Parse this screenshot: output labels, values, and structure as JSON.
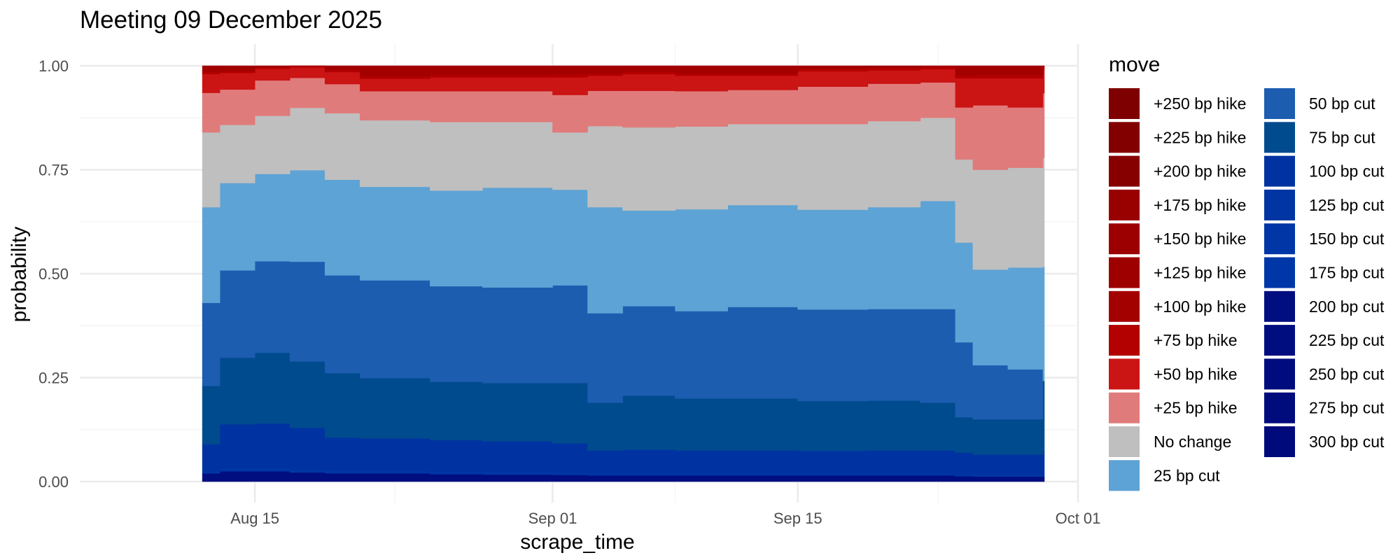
{
  "chart_data": {
    "type": "area",
    "stacked": true,
    "title": "Meeting 09 December 2025",
    "xlabel": "scrape_time",
    "ylabel": "probability",
    "xlim": [
      "2025-08-05",
      "2025-10-01"
    ],
    "ylim": [
      0,
      1
    ],
    "x_ticks": [
      {
        "date": "2025-08-15",
        "label": "Aug 15"
      },
      {
        "date": "2025-09-01",
        "label": "Sep 01"
      },
      {
        "date": "2025-09-15",
        "label": "Sep 15"
      },
      {
        "date": "2025-10-01",
        "label": "Oct 01"
      }
    ],
    "y_ticks": [
      {
        "value": 0.0,
        "label": "0.00"
      },
      {
        "value": 0.25,
        "label": "0.25"
      },
      {
        "value": 0.5,
        "label": "0.50"
      },
      {
        "value": 0.75,
        "label": "0.75"
      },
      {
        "value": 1.0,
        "label": "1.00"
      }
    ],
    "grid": true,
    "legend_title": "move",
    "legend_position": "right",
    "legend": [
      {
        "label": "+250 bp hike",
        "color": "#7f0000"
      },
      {
        "label": "+225 bp hike",
        "color": "#820000"
      },
      {
        "label": "+200 bp hike",
        "color": "#860000"
      },
      {
        "label": "+175 bp hike",
        "color": "#990000"
      },
      {
        "label": "+150 bp hike",
        "color": "#9c0000"
      },
      {
        "label": "+125 bp hike",
        "color": "#9e0000"
      },
      {
        "label": "+100 bp hike",
        "color": "#a30000"
      },
      {
        "label": "+75 bp hike",
        "color": "#b30000"
      },
      {
        "label": "+50 bp hike",
        "color": "#cb1414"
      },
      {
        "label": "+25 bp hike",
        "color": "#e07b7b"
      },
      {
        "label": "No change",
        "color": "#bfbfbf"
      },
      {
        "label": "25 bp cut",
        "color": "#5da3d5"
      },
      {
        "label": "50 bp cut",
        "color": "#1c5db0"
      },
      {
        "label": "75 bp cut",
        "color": "#004b8d"
      },
      {
        "label": "100 bp cut",
        "color": "#0033a1"
      },
      {
        "label": "125 bp cut",
        "color": "#0035a3"
      },
      {
        "label": "150 bp cut",
        "color": "#0036a6"
      },
      {
        "label": "175 bp cut",
        "color": "#0037a8"
      },
      {
        "label": "200 bp cut",
        "color": "#000e7f"
      },
      {
        "label": "225 bp cut",
        "color": "#000d7f"
      },
      {
        "label": "250 bp cut",
        "color": "#000c7d"
      },
      {
        "label": "275 bp cut",
        "color": "#000b7c"
      },
      {
        "label": "300 bp cut",
        "color": "#000a7a"
      }
    ],
    "dates": [
      "2025-08-12",
      "2025-08-13",
      "2025-08-15",
      "2025-08-17",
      "2025-08-19",
      "2025-08-21",
      "2025-08-25",
      "2025-08-28",
      "2025-09-01",
      "2025-09-03",
      "2025-09-05",
      "2025-09-08",
      "2025-09-11",
      "2025-09-15",
      "2025-09-19",
      "2025-09-22",
      "2025-09-24",
      "2025-09-25",
      "2025-09-27",
      "2025-09-29"
    ],
    "series": [
      {
        "name": "200 bp cut",
        "values": [
          0.02,
          0.025,
          0.025,
          0.022,
          0.02,
          0.02,
          0.018,
          0.017,
          0.016,
          0.015,
          0.015,
          0.015,
          0.015,
          0.015,
          0.015,
          0.015,
          0.013,
          0.012,
          0.012,
          0.012
        ]
      },
      {
        "name": "150 bp cut",
        "values": [
          0.005,
          0.008,
          0.008,
          0.007,
          0.006,
          0.006,
          0.005,
          0.005,
          0.005,
          0.004,
          0.004,
          0.004,
          0.004,
          0.004,
          0.004,
          0.004,
          0.003,
          0.003,
          0.003,
          0.003
        ]
      },
      {
        "name": "100 bp cut",
        "values": [
          0.065,
          0.105,
          0.107,
          0.1,
          0.08,
          0.078,
          0.077,
          0.075,
          0.071,
          0.056,
          0.058,
          0.056,
          0.056,
          0.055,
          0.056,
          0.056,
          0.054,
          0.05,
          0.05,
          0.057
        ]
      },
      {
        "name": "75 bp cut",
        "values": [
          0.14,
          0.16,
          0.17,
          0.16,
          0.155,
          0.145,
          0.14,
          0.14,
          0.145,
          0.115,
          0.13,
          0.125,
          0.125,
          0.12,
          0.12,
          0.115,
          0.085,
          0.085,
          0.085,
          0.17
        ]
      },
      {
        "name": "50 bp cut",
        "values": [
          0.2,
          0.21,
          0.22,
          0.24,
          0.235,
          0.235,
          0.23,
          0.23,
          0.235,
          0.215,
          0.215,
          0.21,
          0.22,
          0.22,
          0.22,
          0.225,
          0.18,
          0.13,
          0.12,
          0.0
        ]
      },
      {
        "name": "25 bp cut",
        "values": [
          0.23,
          0.21,
          0.21,
          0.22,
          0.23,
          0.225,
          0.23,
          0.24,
          0.23,
          0.255,
          0.23,
          0.245,
          0.245,
          0.24,
          0.245,
          0.26,
          0.24,
          0.23,
          0.245,
          0.275
        ]
      },
      {
        "name": "No change",
        "values": [
          0.18,
          0.14,
          0.14,
          0.15,
          0.16,
          0.16,
          0.165,
          0.158,
          0.138,
          0.195,
          0.2,
          0.199,
          0.195,
          0.206,
          0.207,
          0.2,
          0.2,
          0.24,
          0.24,
          0.262
        ]
      },
      {
        "name": "+25 bp hike",
        "values": [
          0.095,
          0.085,
          0.085,
          0.072,
          0.07,
          0.07,
          0.074,
          0.074,
          0.09,
          0.085,
          0.088,
          0.085,
          0.082,
          0.09,
          0.09,
          0.085,
          0.125,
          0.155,
          0.145,
          0.155
        ]
      },
      {
        "name": "+50 bp hike",
        "values": [
          0.045,
          0.04,
          0.028,
          0.025,
          0.029,
          0.03,
          0.033,
          0.033,
          0.042,
          0.036,
          0.04,
          0.037,
          0.034,
          0.037,
          0.032,
          0.032,
          0.07,
          0.065,
          0.07,
          0.056
        ]
      },
      {
        "name": "+75 bp hike",
        "values": [
          0.005,
          0.005,
          0.004,
          0.004,
          0.005,
          0.006,
          0.006,
          0.006,
          0.008,
          0.006,
          0.006,
          0.006,
          0.006,
          0.006,
          0.006,
          0.006,
          0.006,
          0.008,
          0.008,
          0.008
        ]
      },
      {
        "name": "+100 bp hike",
        "values": [
          0.015,
          0.012,
          0.003,
          0.0,
          0.01,
          0.025,
          0.022,
          0.022,
          0.02,
          0.018,
          0.014,
          0.018,
          0.018,
          0.007,
          0.005,
          0.002,
          0.024,
          0.022,
          0.022,
          0.002
        ]
      }
    ]
  }
}
